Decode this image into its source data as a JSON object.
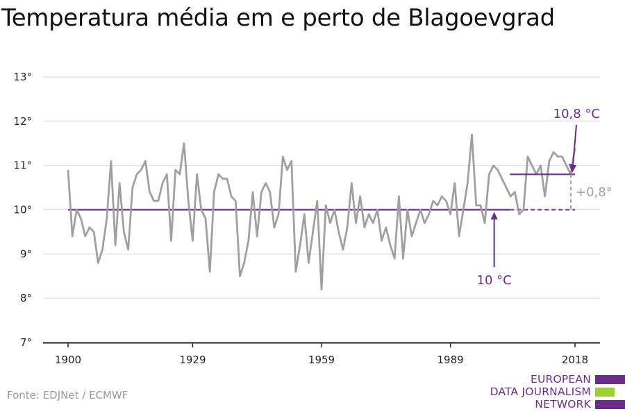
{
  "title": "Temperatura média em e perto de Blagoevgrad",
  "source": "Fonte: EDJNet / ECMWF",
  "logo": {
    "lines": [
      "EUROPEAN",
      "DATA JOURNALISM",
      "NETWORK"
    ],
    "colors": {
      "text": "#6b2d8a",
      "bar_purple": "#6b2d8a",
      "bar_green": "#9ed12f"
    }
  },
  "chart_data": {
    "type": "line",
    "ylim": [
      7,
      13
    ],
    "yticks": [
      7,
      8,
      9,
      10,
      11,
      12,
      13
    ],
    "ytick_labels": [
      "7°",
      "8°",
      "9°",
      "10°",
      "11°",
      "12°",
      "13°"
    ],
    "xlim": [
      1900,
      2018
    ],
    "xticks": [
      1900,
      1929,
      1959,
      1989,
      2018
    ],
    "xtick_labels": [
      "1900",
      "1929",
      "1959",
      "1989",
      "2018"
    ],
    "grid": true,
    "series": [
      {
        "color": "#a0a0a0",
        "x": [
          1900,
          1901,
          1902,
          1903,
          1904,
          1905,
          1906,
          1907,
          1908,
          1909,
          1910,
          1911,
          1912,
          1913,
          1914,
          1915,
          1916,
          1917,
          1918,
          1919,
          1920,
          1921,
          1922,
          1923,
          1924,
          1925,
          1926,
          1927,
          1928,
          1929,
          1930,
          1931,
          1932,
          1933,
          1934,
          1935,
          1936,
          1937,
          1938,
          1939,
          1940,
          1941,
          1942,
          1943,
          1944,
          1945,
          1946,
          1947,
          1948,
          1949,
          1950,
          1951,
          1952,
          1953,
          1954,
          1955,
          1956,
          1957,
          1958,
          1959,
          1960,
          1961,
          1962,
          1963,
          1964,
          1965,
          1966,
          1967,
          1968,
          1969,
          1970,
          1971,
          1972,
          1973,
          1974,
          1975,
          1976,
          1977,
          1978,
          1979,
          1980,
          1981,
          1982,
          1983,
          1984,
          1985,
          1986,
          1987,
          1988,
          1989,
          1990,
          1991,
          1992,
          1993,
          1994,
          1995,
          1996,
          1997,
          1998,
          1999,
          2000,
          2001,
          2002,
          2003,
          2004,
          2005,
          2006,
          2007,
          2008,
          2009,
          2010,
          2011,
          2012,
          2013,
          2014,
          2015,
          2016,
          2017,
          2018
        ],
        "values": [
          10.9,
          9.4,
          10.0,
          9.8,
          9.4,
          9.6,
          9.5,
          8.8,
          9.1,
          9.8,
          11.1,
          9.2,
          10.6,
          9.5,
          9.1,
          10.5,
          10.8,
          10.9,
          11.1,
          10.4,
          10.2,
          10.2,
          10.6,
          10.8,
          9.3,
          10.9,
          10.8,
          11.5,
          10.2,
          9.3,
          10.8,
          10.0,
          9.8,
          8.6,
          10.4,
          10.8,
          10.7,
          10.7,
          10.3,
          10.2,
          8.5,
          8.8,
          9.3,
          10.4,
          9.4,
          10.4,
          10.6,
          10.4,
          9.6,
          9.9,
          11.2,
          10.9,
          11.1,
          8.6,
          9.2,
          9.9,
          8.8,
          9.5,
          10.2,
          8.2,
          10.1,
          9.7,
          10.0,
          9.5,
          9.1,
          9.6,
          10.6,
          9.7,
          10.3,
          9.6,
          9.9,
          9.7,
          10.0,
          9.3,
          9.6,
          9.2,
          8.9,
          10.3,
          8.9,
          10.0,
          9.4,
          9.7,
          10.0,
          9.7,
          9.9,
          10.2,
          10.1,
          10.3,
          10.2,
          9.9,
          10.6,
          9.4,
          10.0,
          10.6,
          11.7,
          10.1,
          10.1,
          9.7,
          10.8,
          11.0,
          10.9,
          10.7,
          10.5,
          10.3,
          10.4,
          9.9,
          10.0,
          11.2,
          11.0,
          10.8,
          11.0,
          10.3,
          11.1,
          11.3,
          11.2,
          11.2,
          11.0,
          10.8,
          11.4
        ]
      }
    ],
    "baseline": {
      "value": 10.0,
      "from": 1900,
      "to": 2018,
      "color": "#6b2d8a",
      "label": "10 °C"
    },
    "recent_avg": {
      "value": 10.8,
      "from": 2003,
      "to": 2018,
      "color": "#6b2d8a",
      "label": "10,8 °C"
    },
    "difference": {
      "label": "+0,8°",
      "color": "#a0a0a0"
    },
    "colors": {
      "grid": "#dddddd",
      "axis": "#222222",
      "tick_label": "#222222"
    }
  }
}
